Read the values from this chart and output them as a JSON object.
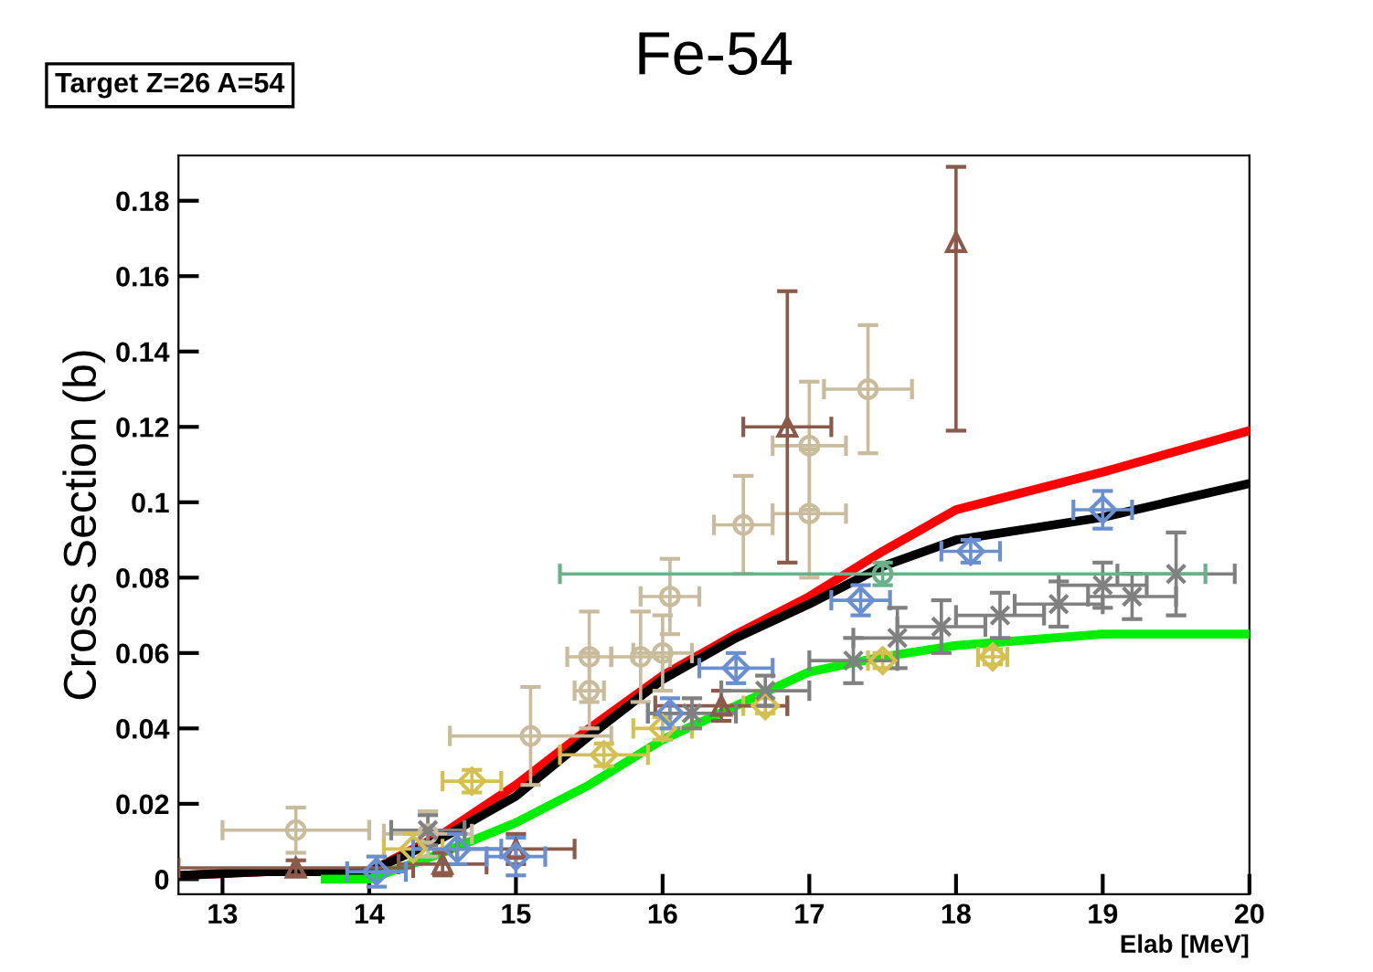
{
  "chart_data": {
    "type": "scatter",
    "title": "Fe-54",
    "xlabel": "Elab [MeV]",
    "ylabel": "Cross Section (b)",
    "annotations": [
      "Target Z=26 A=54"
    ],
    "xlim": [
      12.7,
      20
    ],
    "ylim": [
      -0.004,
      0.192
    ],
    "xticks": [
      13,
      14,
      15,
      16,
      17,
      18,
      19,
      20
    ],
    "yticks": [
      0,
      0.02,
      0.04,
      0.06,
      0.08,
      0.1,
      0.12,
      0.14,
      0.16,
      0.18
    ],
    "grid": false,
    "legend": false,
    "series": [
      {
        "color": "#c8bc9c",
        "marker": "circle",
        "x": [
          17.4,
          17.0,
          17.0,
          16.55,
          16.05,
          15.85,
          16.0,
          15.5,
          15.5,
          15.1,
          13.5,
          14.4
        ],
        "values": [
          0.13,
          0.115,
          0.097,
          0.094,
          0.075,
          0.059,
          0.06,
          0.059,
          0.05,
          0.038,
          0.013,
          0.012
        ],
        "errors": [
          0.017,
          0.017,
          0.017,
          0.013,
          0.01,
          0.012,
          0.01,
          0.012,
          0.01,
          0.013,
          0.006,
          0.006
        ],
        "xerrors": [
          0.3,
          0.25,
          0.25,
          0.2,
          0.2,
          0.2,
          0.2,
          0.15,
          0.1,
          0.55,
          0.5,
          0.3
        ]
      },
      {
        "color": "#d4c050",
        "marker": "diamond",
        "x": [
          14.7,
          15.6,
          16.0,
          17.5,
          18.25,
          16.7,
          14.3
        ],
        "values": [
          0.026,
          0.033,
          0.04,
          0.058,
          0.059,
          0.046,
          0.008
        ],
        "errors": [
          0.003,
          0.003,
          0.003,
          0.002,
          0.002,
          0.002,
          0.004
        ],
        "xerrors": [
          0.2,
          0.3,
          0.2,
          0.1,
          0.1,
          0.15,
          0.2
        ]
      },
      {
        "color": "#8b5a4a",
        "marker": "triangle",
        "x": [
          18.0,
          16.85,
          16.4,
          13.5,
          14.5,
          15.0
        ],
        "values": [
          0.169,
          0.12,
          0.046,
          0.003,
          0.004,
          0.008
        ],
        "errors": [
          [
            0.119,
            0.189
          ],
          0.036,
          0.004,
          0.002,
          0.003,
          0.004
        ],
        "xerrors": [
          null,
          0.3,
          0.45,
          0.8,
          0.3,
          0.4
        ]
      },
      {
        "color": "#6a8fd0",
        "marker": "diamond",
        "x": [
          19.0,
          18.1,
          17.35,
          16.5,
          16.05,
          15.0,
          14.6,
          14.05
        ],
        "values": [
          0.098,
          0.087,
          0.074,
          0.056,
          0.044,
          0.006,
          0.008,
          0.002
        ],
        "errors": [
          0.005,
          0.003,
          0.004,
          0.004,
          0.004,
          0.005,
          0.004,
          0.004
        ],
        "xerrors": [
          0.2,
          0.2,
          0.2,
          0.25,
          0.15,
          0.2,
          0.3,
          0.2
        ]
      },
      {
        "color": "#808080",
        "marker": "cross",
        "x": [
          16.2,
          16.7,
          17.3,
          17.6,
          17.9,
          18.3,
          18.7,
          19.2,
          19.5,
          19.0,
          14.4
        ],
        "values": [
          0.044,
          0.05,
          0.058,
          0.064,
          0.067,
          0.07,
          0.073,
          0.075,
          0.081,
          0.078,
          0.013
        ],
        "errors": [
          0.004,
          0.004,
          0.006,
          0.008,
          0.007,
          0.006,
          0.006,
          0.006,
          0.011,
          0.006,
          0.004
        ],
        "xerrors": [
          0.3,
          0.3,
          0.3,
          0.3,
          0.3,
          0.3,
          0.3,
          0.3,
          0.4,
          0.3,
          0.25
        ]
      },
      {
        "color": "#6ab08a",
        "marker": "circle",
        "x": [
          17.5
        ],
        "values": [
          0.081
        ],
        "errors": [
          0.003
        ],
        "xerrors": [
          2.2
        ]
      },
      {
        "type": "line",
        "color": "#ff0000",
        "marker": "none",
        "x": [
          12.7,
          13.3,
          14.0,
          14.5,
          15.0,
          15.5,
          16.0,
          16.5,
          17.0,
          17.5,
          18.0,
          19.0,
          20.0
        ],
        "values": [
          0.001,
          0.002,
          0.002,
          0.012,
          0.025,
          0.04,
          0.054,
          0.065,
          0.075,
          0.087,
          0.098,
          0.108,
          0.119
        ]
      },
      {
        "type": "line",
        "color": "#000000",
        "marker": "none",
        "x": [
          12.7,
          13.3,
          14.0,
          14.5,
          15.0,
          15.5,
          16.0,
          16.5,
          17.0,
          17.5,
          18.0,
          19.0,
          20.0
        ],
        "values": [
          0.001,
          0.002,
          0.002,
          0.011,
          0.022,
          0.038,
          0.053,
          0.064,
          0.073,
          0.083,
          0.09,
          0.096,
          0.105
        ]
      },
      {
        "type": "line",
        "color": "#00ee00",
        "marker": "none",
        "x": [
          13.7,
          14.0,
          14.5,
          15.0,
          15.5,
          16.0,
          16.5,
          17.0,
          17.5,
          18.0,
          19.0,
          20.0
        ],
        "values": [
          0.0,
          0.0,
          0.007,
          0.015,
          0.025,
          0.037,
          0.046,
          0.055,
          0.059,
          0.062,
          0.065,
          0.065
        ]
      }
    ]
  }
}
